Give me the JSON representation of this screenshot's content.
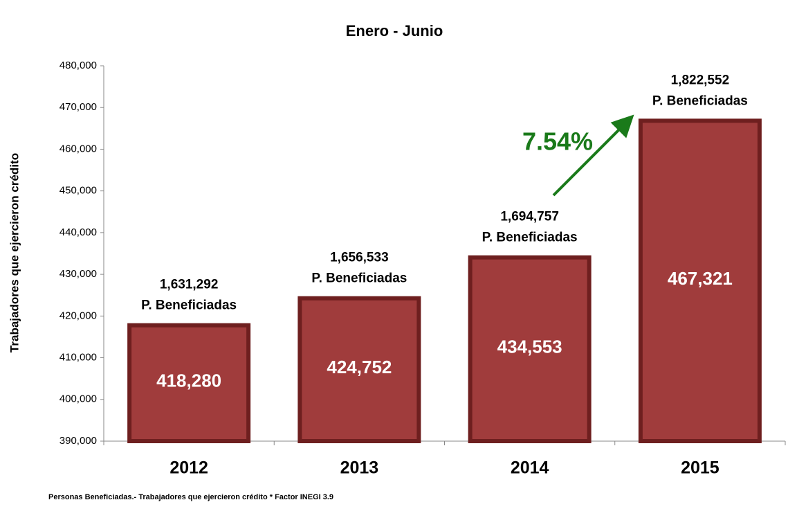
{
  "chart_data": {
    "type": "bar",
    "title": "Enero - Junio",
    "y_label": "Trabajadores que ejercieron crédito",
    "categories": [
      "2012",
      "2013",
      "2014",
      "2015"
    ],
    "values": [
      418280,
      424752,
      434553,
      467321
    ],
    "value_labels": [
      "418,280",
      "424,752",
      "434,553",
      "467,321"
    ],
    "color": "#a03c3c",
    "beneficiadas": [
      "1,631,292",
      "1,656,533",
      "1,694,757",
      "1,822,552"
    ],
    "beneficiadas_label": "P. Beneficiadas",
    "growth_annotation": "7.54%",
    "footnote": "Personas Beneficiadas.- Trabajadores que ejercieron crédito * Factor INEGI 3.9",
    "ylim": [
      390000,
      480000
    ],
    "yticks": [
      {
        "value": 390000,
        "label": "390,000"
      },
      {
        "value": 400000,
        "label": "400,000"
      },
      {
        "value": 410000,
        "label": "410,000"
      },
      {
        "value": 420000,
        "label": "420,000"
      },
      {
        "value": 430000,
        "label": "430,000"
      },
      {
        "value": 440000,
        "label": "440,000"
      },
      {
        "value": 450000,
        "label": "450,000"
      },
      {
        "value": 460000,
        "label": "460,000"
      },
      {
        "value": 470000,
        "label": "470,000"
      },
      {
        "value": 480000,
        "label": "480,000"
      }
    ],
    "grid": false
  }
}
